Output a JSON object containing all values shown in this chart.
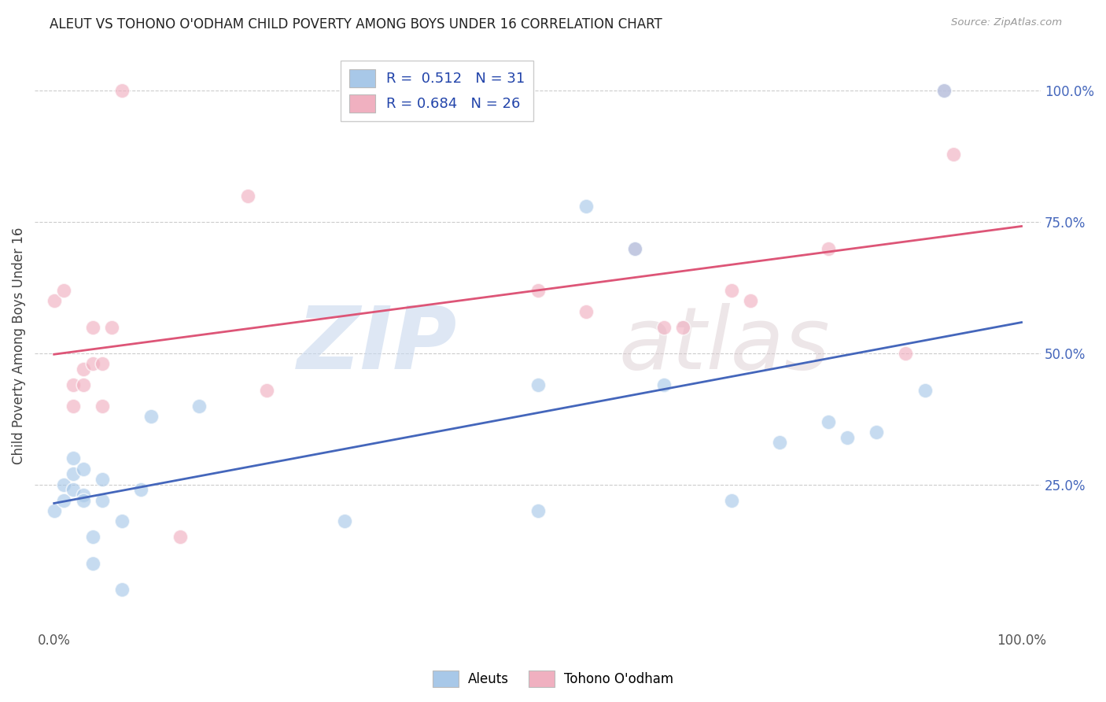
{
  "title": "ALEUT VS TOHONO O'ODHAM CHILD POVERTY AMONG BOYS UNDER 16 CORRELATION CHART",
  "source": "Source: ZipAtlas.com",
  "ylabel": "Child Poverty Among Boys Under 16",
  "r_blue": 0.512,
  "n_blue": 31,
  "r_pink": 0.684,
  "n_pink": 26,
  "blue_color": "#a8c8e8",
  "pink_color": "#f0b0c0",
  "blue_line_color": "#4466bb",
  "pink_line_color": "#dd5577",
  "legend_labels": [
    "Aleuts",
    "Tohono O'odham"
  ],
  "blue_x": [
    0.0,
    0.01,
    0.01,
    0.02,
    0.02,
    0.02,
    0.03,
    0.03,
    0.03,
    0.04,
    0.04,
    0.05,
    0.05,
    0.07,
    0.07,
    0.09,
    0.1,
    0.15,
    0.3,
    0.5,
    0.5,
    0.55,
    0.6,
    0.63,
    0.7,
    0.75,
    0.8,
    0.82,
    0.85,
    0.9,
    0.92
  ],
  "blue_y": [
    0.2,
    0.22,
    0.25,
    0.24,
    0.27,
    0.3,
    0.23,
    0.28,
    0.22,
    0.1,
    0.15,
    0.26,
    0.22,
    0.05,
    0.18,
    0.24,
    0.38,
    0.4,
    0.18,
    0.44,
    0.2,
    0.78,
    0.7,
    0.44,
    0.22,
    0.33,
    0.37,
    0.34,
    0.35,
    0.43,
    1.0
  ],
  "pink_x": [
    0.0,
    0.01,
    0.02,
    0.02,
    0.03,
    0.03,
    0.04,
    0.04,
    0.05,
    0.05,
    0.06,
    0.07,
    0.13,
    0.2,
    0.22,
    0.5,
    0.55,
    0.6,
    0.63,
    0.65,
    0.7,
    0.72,
    0.8,
    0.88,
    0.92,
    0.93
  ],
  "pink_y": [
    0.6,
    0.62,
    0.4,
    0.44,
    0.44,
    0.47,
    0.55,
    0.48,
    0.4,
    0.48,
    0.55,
    1.0,
    0.15,
    0.8,
    0.43,
    0.62,
    0.58,
    0.7,
    0.55,
    0.55,
    0.62,
    0.6,
    0.7,
    0.5,
    1.0,
    0.88
  ],
  "xlim": [
    0.0,
    1.0
  ],
  "ylim": [
    0.0,
    1.0
  ],
  "ytick_positions": [
    0.25,
    0.5,
    0.75,
    1.0
  ],
  "ytick_labels": [
    "25.0%",
    "50.0%",
    "75.0%",
    "100.0%"
  ],
  "xtick_positions": [
    0.0,
    1.0
  ],
  "xtick_labels": [
    "0.0%",
    "100.0%"
  ],
  "grid_color": "#cccccc",
  "title_fontsize": 12,
  "axis_label_fontsize": 12,
  "tick_fontsize": 12,
  "right_tick_color": "#4466bb",
  "marker_size": 180,
  "marker_alpha": 0.65,
  "line_width": 2.0
}
